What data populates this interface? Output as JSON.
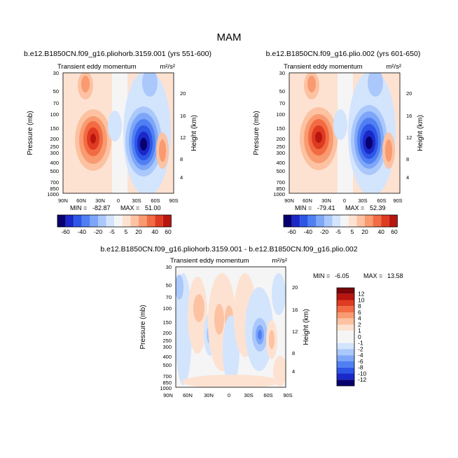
{
  "page_title": "MAM",
  "colors": {
    "neg": [
      "#08006e",
      "#1a28c8",
      "#2d55e6",
      "#4f7ff2",
      "#7ea6f8",
      "#aac8fb",
      "#d3e4fd"
    ],
    "zero": "#f5f5f5",
    "pos": [
      "#fde2d2",
      "#fcc2a2",
      "#f99a70",
      "#f26b43",
      "#de3b22",
      "#b8150e",
      "#7a0408"
    ]
  },
  "chart_data": [
    {
      "type": "heatmap",
      "title": "b.e12.B1850CN.f09_g16.pliohorb.3159.001 (yrs 551-600)",
      "subtitle": "Transient eddy momentum",
      "units": "m²/s²",
      "xlabel": "",
      "ylabel": "Pressure (mb)",
      "y2label": "Height (km)",
      "x_ticks": [
        "90N",
        "60N",
        "30N",
        "0",
        "30S",
        "60S",
        "90S"
      ],
      "y_ticks": [
        "30",
        "50",
        "70",
        "100",
        "150",
        "200",
        "250",
        "300",
        "400",
        "500",
        "700",
        "850",
        "1000"
      ],
      "y_range": [
        30,
        1000
      ],
      "y2_ticks": [
        "20",
        "16",
        "12",
        "8",
        "4"
      ],
      "stats": {
        "min_label": "MIN =",
        "min": "-82.87",
        "max_label": "MAX =",
        "max": "51.00"
      },
      "features": [
        {
          "lat": -64,
          "p": 30,
          "value": 20
        },
        {
          "lat": -28,
          "p": 210,
          "value": 51
        },
        {
          "lat": 0,
          "p": 150,
          "value": -10
        },
        {
          "lat": 45,
          "p": 230,
          "value": -82.87
        },
        {
          "lat": 72,
          "p": 300,
          "value": 25
        }
      ],
      "colorbar": [
        "-60",
        "-40",
        "-20",
        "-5",
        "5",
        "20",
        "40",
        "60"
      ]
    },
    {
      "type": "heatmap",
      "title": "b.e12.B1850CN.f09_g16.plio.002 (yrs 601-650)",
      "subtitle": "Transient eddy momentum",
      "units": "m²/s²",
      "xlabel": "",
      "ylabel": "Pressure (mb)",
      "y2label": "Height (km)",
      "x_ticks": [
        "90N",
        "60N",
        "30N",
        "0",
        "30S",
        "60S",
        "90S"
      ],
      "y_ticks": [
        "30",
        "50",
        "70",
        "100",
        "150",
        "200",
        "250",
        "300",
        "400",
        "500",
        "700",
        "850",
        "1000"
      ],
      "y_range": [
        30,
        1000
      ],
      "y2_ticks": [
        "20",
        "16",
        "12",
        "8",
        "4"
      ],
      "stats": {
        "min_label": "MIN =",
        "min": "-79.41",
        "max_label": "MAX =",
        "max": "52.39"
      },
      "features": [
        {
          "lat": -64,
          "p": 30,
          "value": 20
        },
        {
          "lat": -30,
          "p": 200,
          "value": 52.39
        },
        {
          "lat": 0,
          "p": 150,
          "value": -10
        },
        {
          "lat": 43,
          "p": 220,
          "value": -79.41
        },
        {
          "lat": 72,
          "p": 300,
          "value": 25
        }
      ],
      "colorbar": [
        "-60",
        "-40",
        "-20",
        "-5",
        "5",
        "20",
        "40",
        "60"
      ]
    },
    {
      "type": "heatmap",
      "title": "b.e12.B1850CN.f09_g16.pliohorb.3159.001 - b.e12.B1850CN.f09_g16.plio.002",
      "subtitle": "Transient eddy momentum",
      "units": "m²/s²",
      "xlabel": "",
      "ylabel": "Pressure (mb)",
      "y2label": "Height (km)",
      "x_ticks": [
        "90N",
        "60N",
        "30N",
        "0",
        "30S",
        "60S",
        "90S"
      ],
      "y_ticks": [
        "30",
        "50",
        "70",
        "100",
        "150",
        "200",
        "250",
        "300",
        "400",
        "500",
        "700",
        "850",
        "1000"
      ],
      "y_range": [
        30,
        1000
      ],
      "y2_ticks": [
        "20",
        "16",
        "12",
        "8",
        "4"
      ],
      "stats": {
        "min_label": "MIN =",
        "min": "-6.05",
        "max_label": "MAX =",
        "max": "13.58"
      },
      "features": [
        {
          "lat": -40,
          "p": 130,
          "value": 3
        },
        {
          "lat": -12,
          "p": 150,
          "value": 4
        },
        {
          "lat": 2,
          "p": 170,
          "value": 3
        },
        {
          "lat": -28,
          "p": 230,
          "value": -4
        },
        {
          "lat": 55,
          "p": 220,
          "value": -6.05
        },
        {
          "lat": 68,
          "p": 250,
          "value": 3
        }
      ],
      "colorbar": [
        "12",
        "10",
        "8",
        "6",
        "4",
        "2",
        "1",
        "0",
        "-1",
        "-2",
        "-4",
        "-6",
        "-8",
        "-10",
        "-12"
      ]
    }
  ]
}
